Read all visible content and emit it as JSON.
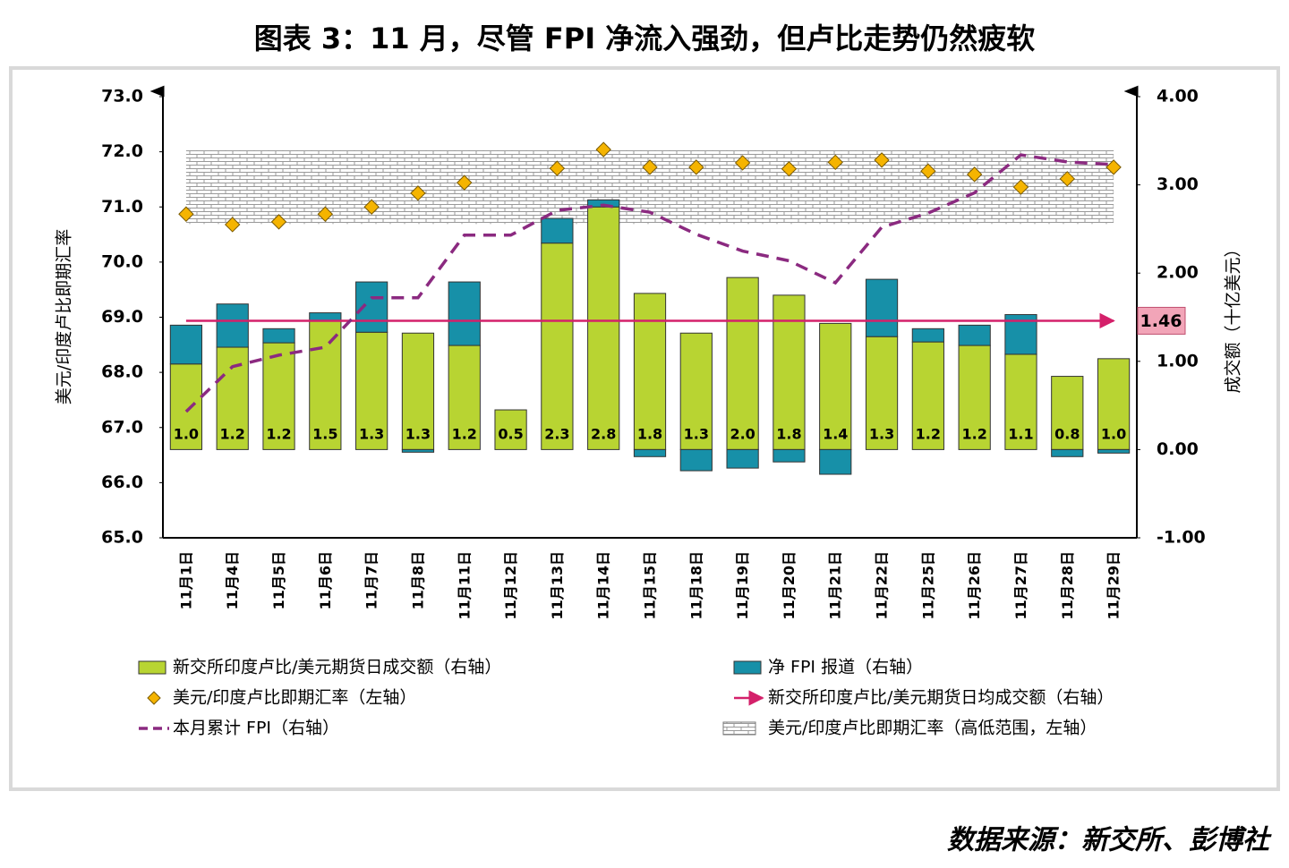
{
  "chart_data": {
    "type": "bar",
    "title": "图表 3：11 月，尽管 FPI 净流入强劲，但卢比走势仍然疲软",
    "source": "数据来源：新交所、彭博社",
    "ylabel": "美元/印度卢比即期汇率",
    "y2label": "成交额（十亿美元）",
    "categories": [
      "11月1日",
      "11月4日",
      "11月5日",
      "11月6日",
      "11月7日",
      "11月8日",
      "11月11日",
      "11月12日",
      "11月13日",
      "11月14日",
      "11月15日",
      "11月18日",
      "11月19日",
      "11月20日",
      "11月21日",
      "11月22日",
      "11月25日",
      "11月26日",
      "11月27日",
      "11月28日",
      "11月29日"
    ],
    "series": [
      {
        "name": "新交所印度卢比/美元期货日成交额（右轴）",
        "color": "#b8d432",
        "axis": "y2",
        "values": [
          0.97,
          1.16,
          1.21,
          1.46,
          1.33,
          1.32,
          1.18,
          0.45,
          2.34,
          2.75,
          1.77,
          1.32,
          1.95,
          1.75,
          1.43,
          1.28,
          1.22,
          1.18,
          1.08,
          0.83,
          1.03
        ],
        "value_labels": [
          "1.0",
          "1.2",
          "1.2",
          "1.5",
          "1.3",
          "1.3",
          "1.2",
          "0.5",
          "2.3",
          "2.8",
          "1.8",
          "1.3",
          "2.0",
          "1.8",
          "1.4",
          "1.3",
          "1.2",
          "1.2",
          "1.1",
          "0.8",
          "1.0"
        ]
      },
      {
        "name": "净 FPI 报道（右轴）",
        "color": "#1790a8",
        "axis": "y2",
        "values": [
          0.44,
          0.49,
          0.16,
          0.09,
          0.57,
          -0.03,
          0.72,
          0,
          0.28,
          0.08,
          -0.08,
          -0.24,
          -0.21,
          -0.14,
          -0.28,
          0.65,
          0.15,
          0.23,
          0.45,
          -0.08,
          -0.04
        ]
      },
      {
        "name": "美元/印度卢比即期汇率（左轴）",
        "color": "#f5b400",
        "axis": "y",
        "values": [
          70.87,
          70.68,
          70.73,
          70.87,
          71.0,
          71.25,
          71.44,
          null,
          71.7,
          72.04,
          71.72,
          71.72,
          71.8,
          71.69,
          71.81,
          71.85,
          71.65,
          71.59,
          71.36,
          71.51,
          71.72
        ]
      },
      {
        "name": "本月累计 FPI（右轴）",
        "color": "#8b2a80",
        "axis": "y2",
        "values": [
          0.43,
          0.94,
          1.07,
          1.16,
          1.72,
          1.72,
          2.43,
          2.43,
          2.71,
          2.77,
          2.69,
          2.44,
          2.25,
          2.14,
          1.89,
          2.52,
          2.68,
          2.91,
          3.34,
          3.26,
          3.23
        ]
      }
    ],
    "average": {
      "name": "新交所印度卢比/美元期货日均成交额（右轴）",
      "color": "#d4206a",
      "value": 1.46
    },
    "range": {
      "name": "美元/印度卢比即期汇率（高低范围，左轴）",
      "high": 72.03,
      "low": 70.69
    },
    "ylim": [
      65,
      73
    ],
    "yticks": [
      {
        "value": 65,
        "label": "65.0"
      },
      {
        "value": 66,
        "label": "66.0"
      },
      {
        "value": 67,
        "label": "67.0"
      },
      {
        "value": 68,
        "label": "68.0"
      },
      {
        "value": 69,
        "label": "69.0"
      },
      {
        "value": 70,
        "label": "70.0"
      },
      {
        "value": 71,
        "label": "71.0"
      },
      {
        "value": 72,
        "label": "72.0"
      },
      {
        "value": 73,
        "label": "73.0"
      }
    ],
    "y2lim": [
      -1,
      4
    ],
    "y2ticks": [
      {
        "value": -1,
        "label": "-1.00"
      },
      {
        "value": 0,
        "label": "0.00"
      },
      {
        "value": 1,
        "label": "1.00"
      },
      {
        "value": 2,
        "label": "2.00"
      },
      {
        "value": 3,
        "label": "3.00"
      },
      {
        "value": 4,
        "label": "4.00"
      }
    ]
  }
}
